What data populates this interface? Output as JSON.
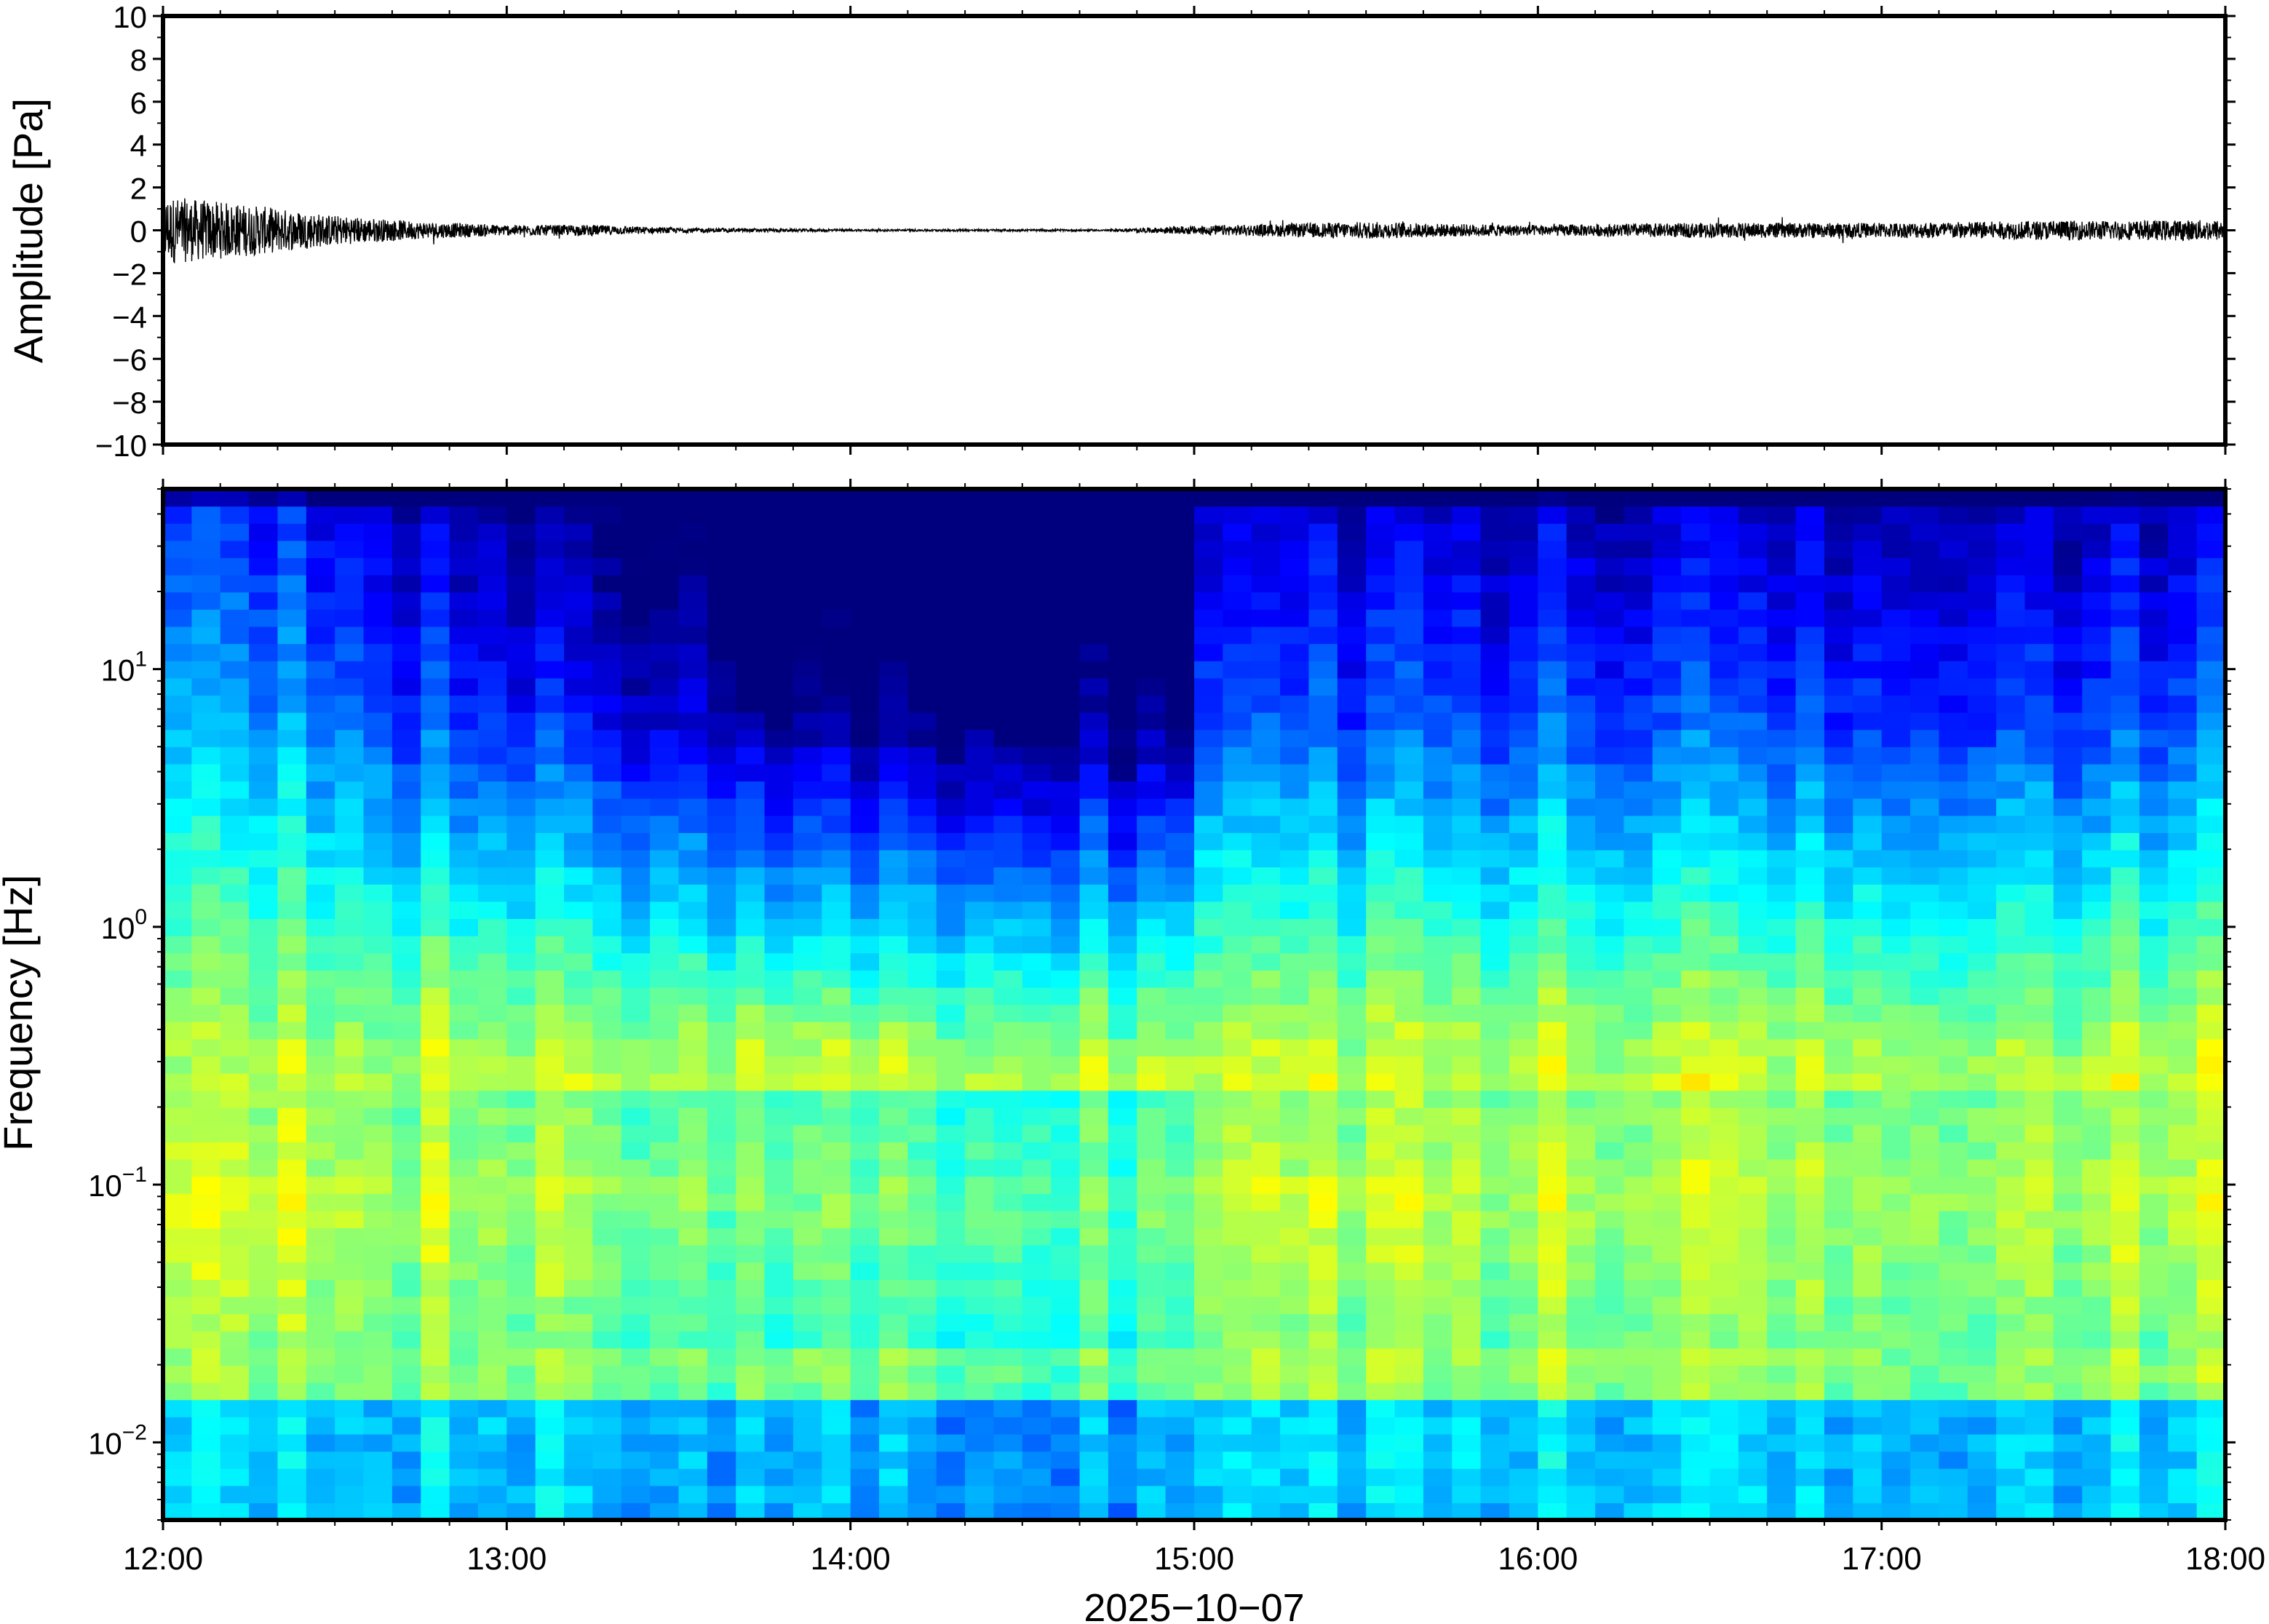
{
  "chart_data": [
    {
      "type": "line",
      "title": "",
      "xlabel": "",
      "ylabel": "Amplitude [Pa]",
      "ylim": [
        -10,
        10
      ],
      "y_ticks": [
        -10,
        -8,
        -6,
        -4,
        -2,
        0,
        2,
        4,
        6,
        8,
        10
      ],
      "y_tick_labels": [
        "−10",
        "−8",
        "−6",
        "−4",
        "−2",
        "0",
        "2",
        "4",
        "6",
        "8",
        "10"
      ],
      "x_range": [
        "12:00",
        "18:00"
      ],
      "grid": false,
      "series": [
        {
          "x": [
            "12:00",
            "12:15",
            "12:30",
            "12:45",
            "13:00",
            "13:15",
            "13:30",
            "13:45",
            "14:00",
            "14:15",
            "14:30",
            "14:45",
            "15:00",
            "15:15",
            "15:30",
            "15:45",
            "16:00",
            "16:15",
            "16:30",
            "16:45",
            "17:00",
            "17:15",
            "17:30",
            "17:45",
            "18:00"
          ],
          "envelope_pa": [
            1.6,
            1.2,
            0.7,
            0.4,
            0.25,
            0.25,
            0.12,
            0.08,
            0.05,
            0.05,
            0.05,
            0.04,
            0.2,
            0.3,
            0.4,
            0.3,
            0.25,
            0.3,
            0.35,
            0.35,
            0.35,
            0.4,
            0.45,
            0.45,
            0.5
          ],
          "color": "#000000"
        }
      ]
    },
    {
      "type": "heatmap",
      "title": "",
      "xlabel": "2025−10−07",
      "ylabel": "Frequency [Hz]",
      "y_scale": "log",
      "ylim": [
        0.005,
        50
      ],
      "x_ticks": [
        "12:00",
        "13:00",
        "14:00",
        "15:00",
        "16:00",
        "17:00",
        "18:00"
      ],
      "y_ticks": [
        0.01,
        0.1,
        1,
        10
      ],
      "y_tick_labels": [
        {
          "base": "10",
          "exp": "−2"
        },
        {
          "base": "10",
          "exp": "−1"
        },
        {
          "base": "10",
          "exp": "0"
        },
        {
          "base": "10",
          "exp": "1"
        }
      ],
      "colormap": [
        "#00007f",
        "#0000ff",
        "#007fff",
        "#00ffff",
        "#7fff7f",
        "#ffff00",
        "#ff7f00",
        "#ff0000"
      ],
      "time_bins": 72,
      "freq_bins": 60,
      "grid": false
    }
  ]
}
